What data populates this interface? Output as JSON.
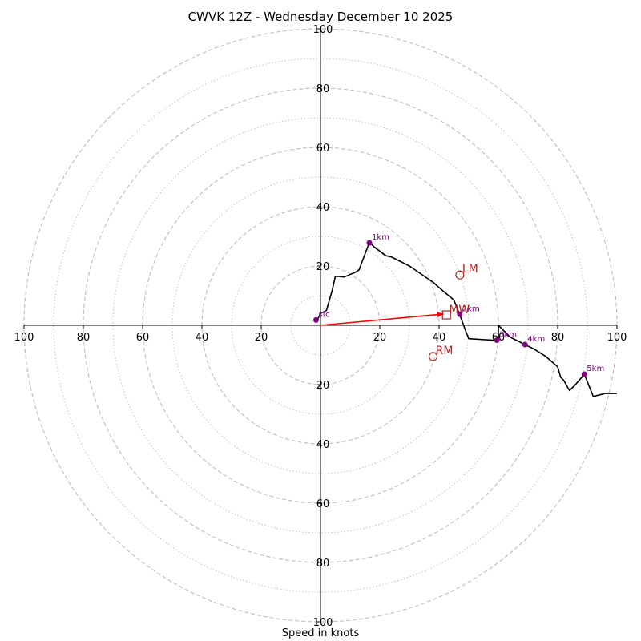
{
  "chart_data": {
    "type": "hodograph",
    "title": "CWVK 12Z - Wednesday December 10 2025",
    "xlabel": "Speed in knots",
    "rings": {
      "max": 100,
      "labeled_step": 20,
      "minor_step": 10,
      "tick_labels": [
        "20",
        "40",
        "60",
        "80",
        "100"
      ]
    },
    "hodograph": {
      "color": "#000000",
      "points": [
        [
          -1,
          2
        ],
        [
          0,
          4
        ],
        [
          2,
          5
        ],
        [
          4,
          12
        ],
        [
          5,
          16.5
        ],
        [
          6,
          16.5
        ],
        [
          8,
          16.3
        ],
        [
          12,
          18
        ],
        [
          13,
          18.7
        ],
        [
          16.5,
          28
        ],
        [
          18,
          26.5
        ],
        [
          22,
          23.5
        ],
        [
          24,
          23
        ],
        [
          30,
          20
        ],
        [
          38,
          14.5
        ],
        [
          42,
          11
        ],
        [
          45,
          8.5
        ],
        [
          47,
          3.5
        ],
        [
          49,
          -2
        ],
        [
          50,
          -4.5
        ],
        [
          58,
          -5
        ],
        [
          60,
          -5
        ],
        [
          60,
          0
        ],
        [
          62,
          -2
        ],
        [
          64,
          -4
        ],
        [
          66,
          -5
        ],
        [
          69,
          -6.5
        ],
        [
          72,
          -8
        ],
        [
          76,
          -10.5
        ],
        [
          80,
          -14
        ],
        [
          81,
          -17.5
        ],
        [
          82,
          -18.5
        ],
        [
          84,
          -22
        ],
        [
          86,
          -20
        ],
        [
          89,
          -16.5
        ],
        [
          92,
          -24
        ],
        [
          96,
          -23
        ],
        [
          100,
          -23
        ]
      ]
    },
    "height_markers": {
      "color": "#800080",
      "points": [
        {
          "label": "sfc",
          "x": -1.5,
          "y": 1.8
        },
        {
          "label": "1km",
          "x": 16.5,
          "y": 27.8
        },
        {
          "label": "2km",
          "x": 47,
          "y": 3.7
        },
        {
          "label": "3km",
          "x": 59.5,
          "y": -5
        },
        {
          "label": "4km",
          "x": 69,
          "y": -6.5
        },
        {
          "label": "5km",
          "x": 89,
          "y": -16.5
        }
      ]
    },
    "storm_motion": {
      "color": "#b22222",
      "LM": {
        "label": "LM",
        "x": 47,
        "y": 17
      },
      "RM": {
        "label": "RM",
        "x": 38,
        "y": -10.5
      },
      "MW": {
        "label": "MW",
        "x": 42.5,
        "y": 3.5
      }
    },
    "mean_wind_arrow": {
      "color": "#ff0000",
      "x0": 0,
      "y0": 0,
      "x1": 41.5,
      "y1": 3.8
    }
  }
}
